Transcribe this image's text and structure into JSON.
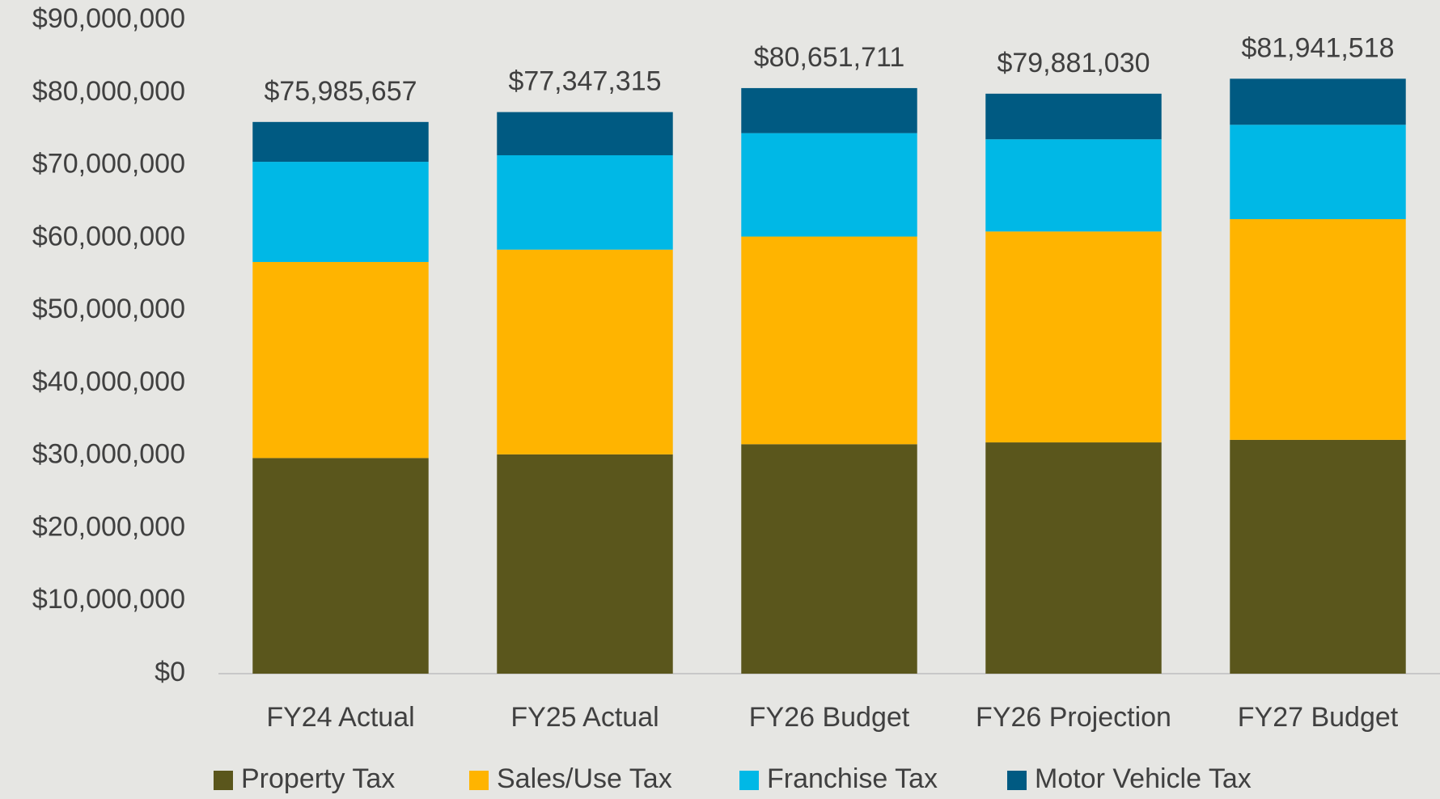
{
  "chart_data": {
    "type": "stacked_bar",
    "categories": [
      "FY24 Actual",
      "FY25 Actual",
      "FY26 Budget",
      "FY26 Projection",
      "FY27 Budget"
    ],
    "series": [
      {
        "name": "Property Tax",
        "color": "#5a561c",
        "values": [
          29700000,
          30200000,
          31600000,
          31850000,
          32200000
        ]
      },
      {
        "name": "Sales/Use Tax",
        "color": "#ffb400",
        "values": [
          27000000,
          28200000,
          28600000,
          29050000,
          30400000
        ]
      },
      {
        "name": "Franchise Tax",
        "color": "#00b8e6",
        "values": [
          13800000,
          13000000,
          14250000,
          12700000,
          13000000
        ]
      },
      {
        "name": "Motor Vehicle Tax",
        "color": "#005a82",
        "values": [
          5485657,
          5947315,
          6201711,
          6281030,
          6341518
        ]
      }
    ],
    "totals": [
      75985657,
      77347315,
      80651711,
      79881030,
      81941518
    ],
    "total_labels": [
      "$75,985,657",
      "$77,347,315",
      "$80,651,711",
      "$79,881,030",
      "$81,941,518"
    ],
    "ylim": [
      0,
      90000000
    ],
    "yticks": [
      {
        "value": 0,
        "label": "$0"
      },
      {
        "value": 10000000,
        "label": "$10,000,000"
      },
      {
        "value": 20000000,
        "label": "$20,000,000"
      },
      {
        "value": 30000000,
        "label": "$30,000,000"
      },
      {
        "value": 40000000,
        "label": "$40,000,000"
      },
      {
        "value": 50000000,
        "label": "$50,000,000"
      },
      {
        "value": 60000000,
        "label": "$60,000,000"
      },
      {
        "value": 70000000,
        "label": "$70,000,000"
      },
      {
        "value": 80000000,
        "label": "$80,000,000"
      },
      {
        "value": 90000000,
        "label": "$90,000,000"
      }
    ],
    "grid": false,
    "legend": "bottom"
  }
}
